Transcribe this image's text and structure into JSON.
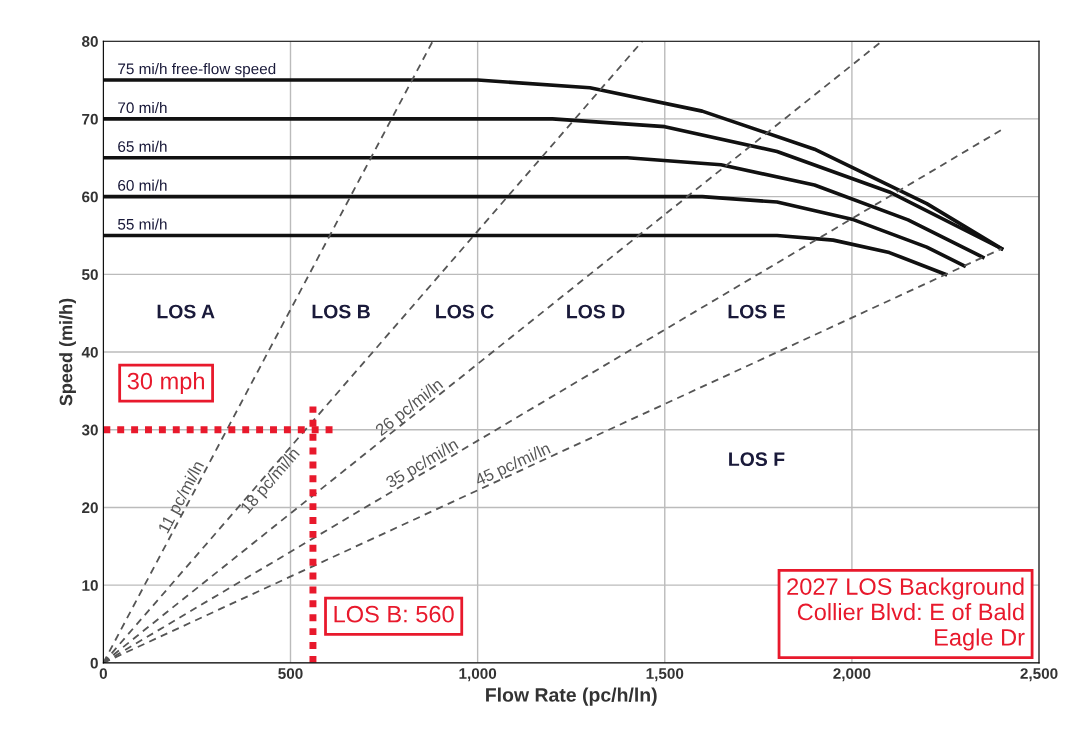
{
  "chart_data": {
    "type": "line",
    "xlabel": "Flow Rate (pc/h/ln)",
    "ylabel": "Speed (mi/h)",
    "xlim": [
      0,
      2500
    ],
    "ylim": [
      0,
      80
    ],
    "xticks": [
      0,
      500,
      {
        "value": 1000,
        "label": "1,000"
      },
      {
        "value": 1500,
        "label": "1,500"
      },
      {
        "value": 2000,
        "label": "2,000"
      },
      {
        "value": 2500,
        "label": "2,500"
      }
    ],
    "yticks": [
      0,
      10,
      20,
      30,
      40,
      50,
      60,
      70,
      80
    ],
    "grid": true,
    "legend": false,
    "marker": "none",
    "series": [
      {
        "name": "75 mi/h free-flow speed",
        "color": "#111111",
        "line_style": "solid",
        "x": [
          0,
          1000,
          1300,
          1600,
          1900,
          2200,
          2400
        ],
        "values": [
          75,
          75,
          74.0,
          71.0,
          66.1,
          59.1,
          53.3
        ]
      },
      {
        "name": "70 mi/h",
        "color": "#111111",
        "line_style": "solid",
        "x": [
          0,
          1200,
          1500,
          1800,
          2100,
          2400
        ],
        "values": [
          70,
          70,
          69.0,
          65.8,
          60.6,
          53.3
        ]
      },
      {
        "name": "65 mi/h",
        "color": "#111111",
        "line_style": "solid",
        "x": [
          0,
          1400,
          1650,
          1900,
          2150,
          2350
        ],
        "values": [
          65,
          65,
          64.1,
          61.5,
          57.0,
          52.2
        ]
      },
      {
        "name": "60 mi/h",
        "color": "#111111",
        "line_style": "solid",
        "x": [
          0,
          1600,
          1800,
          2000,
          2200,
          2300
        ],
        "values": [
          60,
          60,
          59.3,
          57.1,
          53.5,
          51.1
        ]
      },
      {
        "name": "55 mi/h",
        "color": "#111111",
        "line_style": "solid",
        "x": [
          0,
          1800,
          1950,
          2100,
          2250
        ],
        "values": [
          55,
          55,
          54.4,
          52.8,
          50
        ]
      },
      {
        "name": "11 pc/mi/ln",
        "color": "#555555",
        "line_style": "dashed",
        "x": [
          0,
          880
        ],
        "values": [
          0,
          80
        ]
      },
      {
        "name": "18 pc/mi/ln",
        "color": "#555555",
        "line_style": "dashed",
        "x": [
          0,
          1440
        ],
        "values": [
          0,
          80
        ]
      },
      {
        "name": "26 pc/mi/ln",
        "color": "#555555",
        "line_style": "dashed",
        "x": [
          0,
          2080
        ],
        "values": [
          0,
          80
        ]
      },
      {
        "name": "35 pc/mi/ln",
        "color": "#555555",
        "line_style": "dashed",
        "x": [
          0,
          2400
        ],
        "values": [
          0,
          68.6
        ]
      },
      {
        "name": "45 pc/mi/ln",
        "color": "#555555",
        "line_style": "dashed",
        "x": [
          0,
          2400
        ],
        "values": [
          0,
          53.3
        ]
      },
      {
        "name": "30 mph",
        "color": "#e8192c",
        "line_style": "dotted",
        "x": [
          0,
          620
        ],
        "values": [
          30,
          30
        ]
      },
      {
        "name": "LOS B: 560",
        "color": "#e8192c",
        "line_style": "dotted",
        "x": [
          560,
          560
        ],
        "values": [
          0,
          33
        ]
      }
    ],
    "annotations": [
      "LOS A",
      "LOS B",
      "LOS C",
      "LOS D",
      "LOS E",
      "LOS F",
      "2027 LOS Background\nCollier Blvd: E of Bald\nEagle Dr"
    ]
  }
}
